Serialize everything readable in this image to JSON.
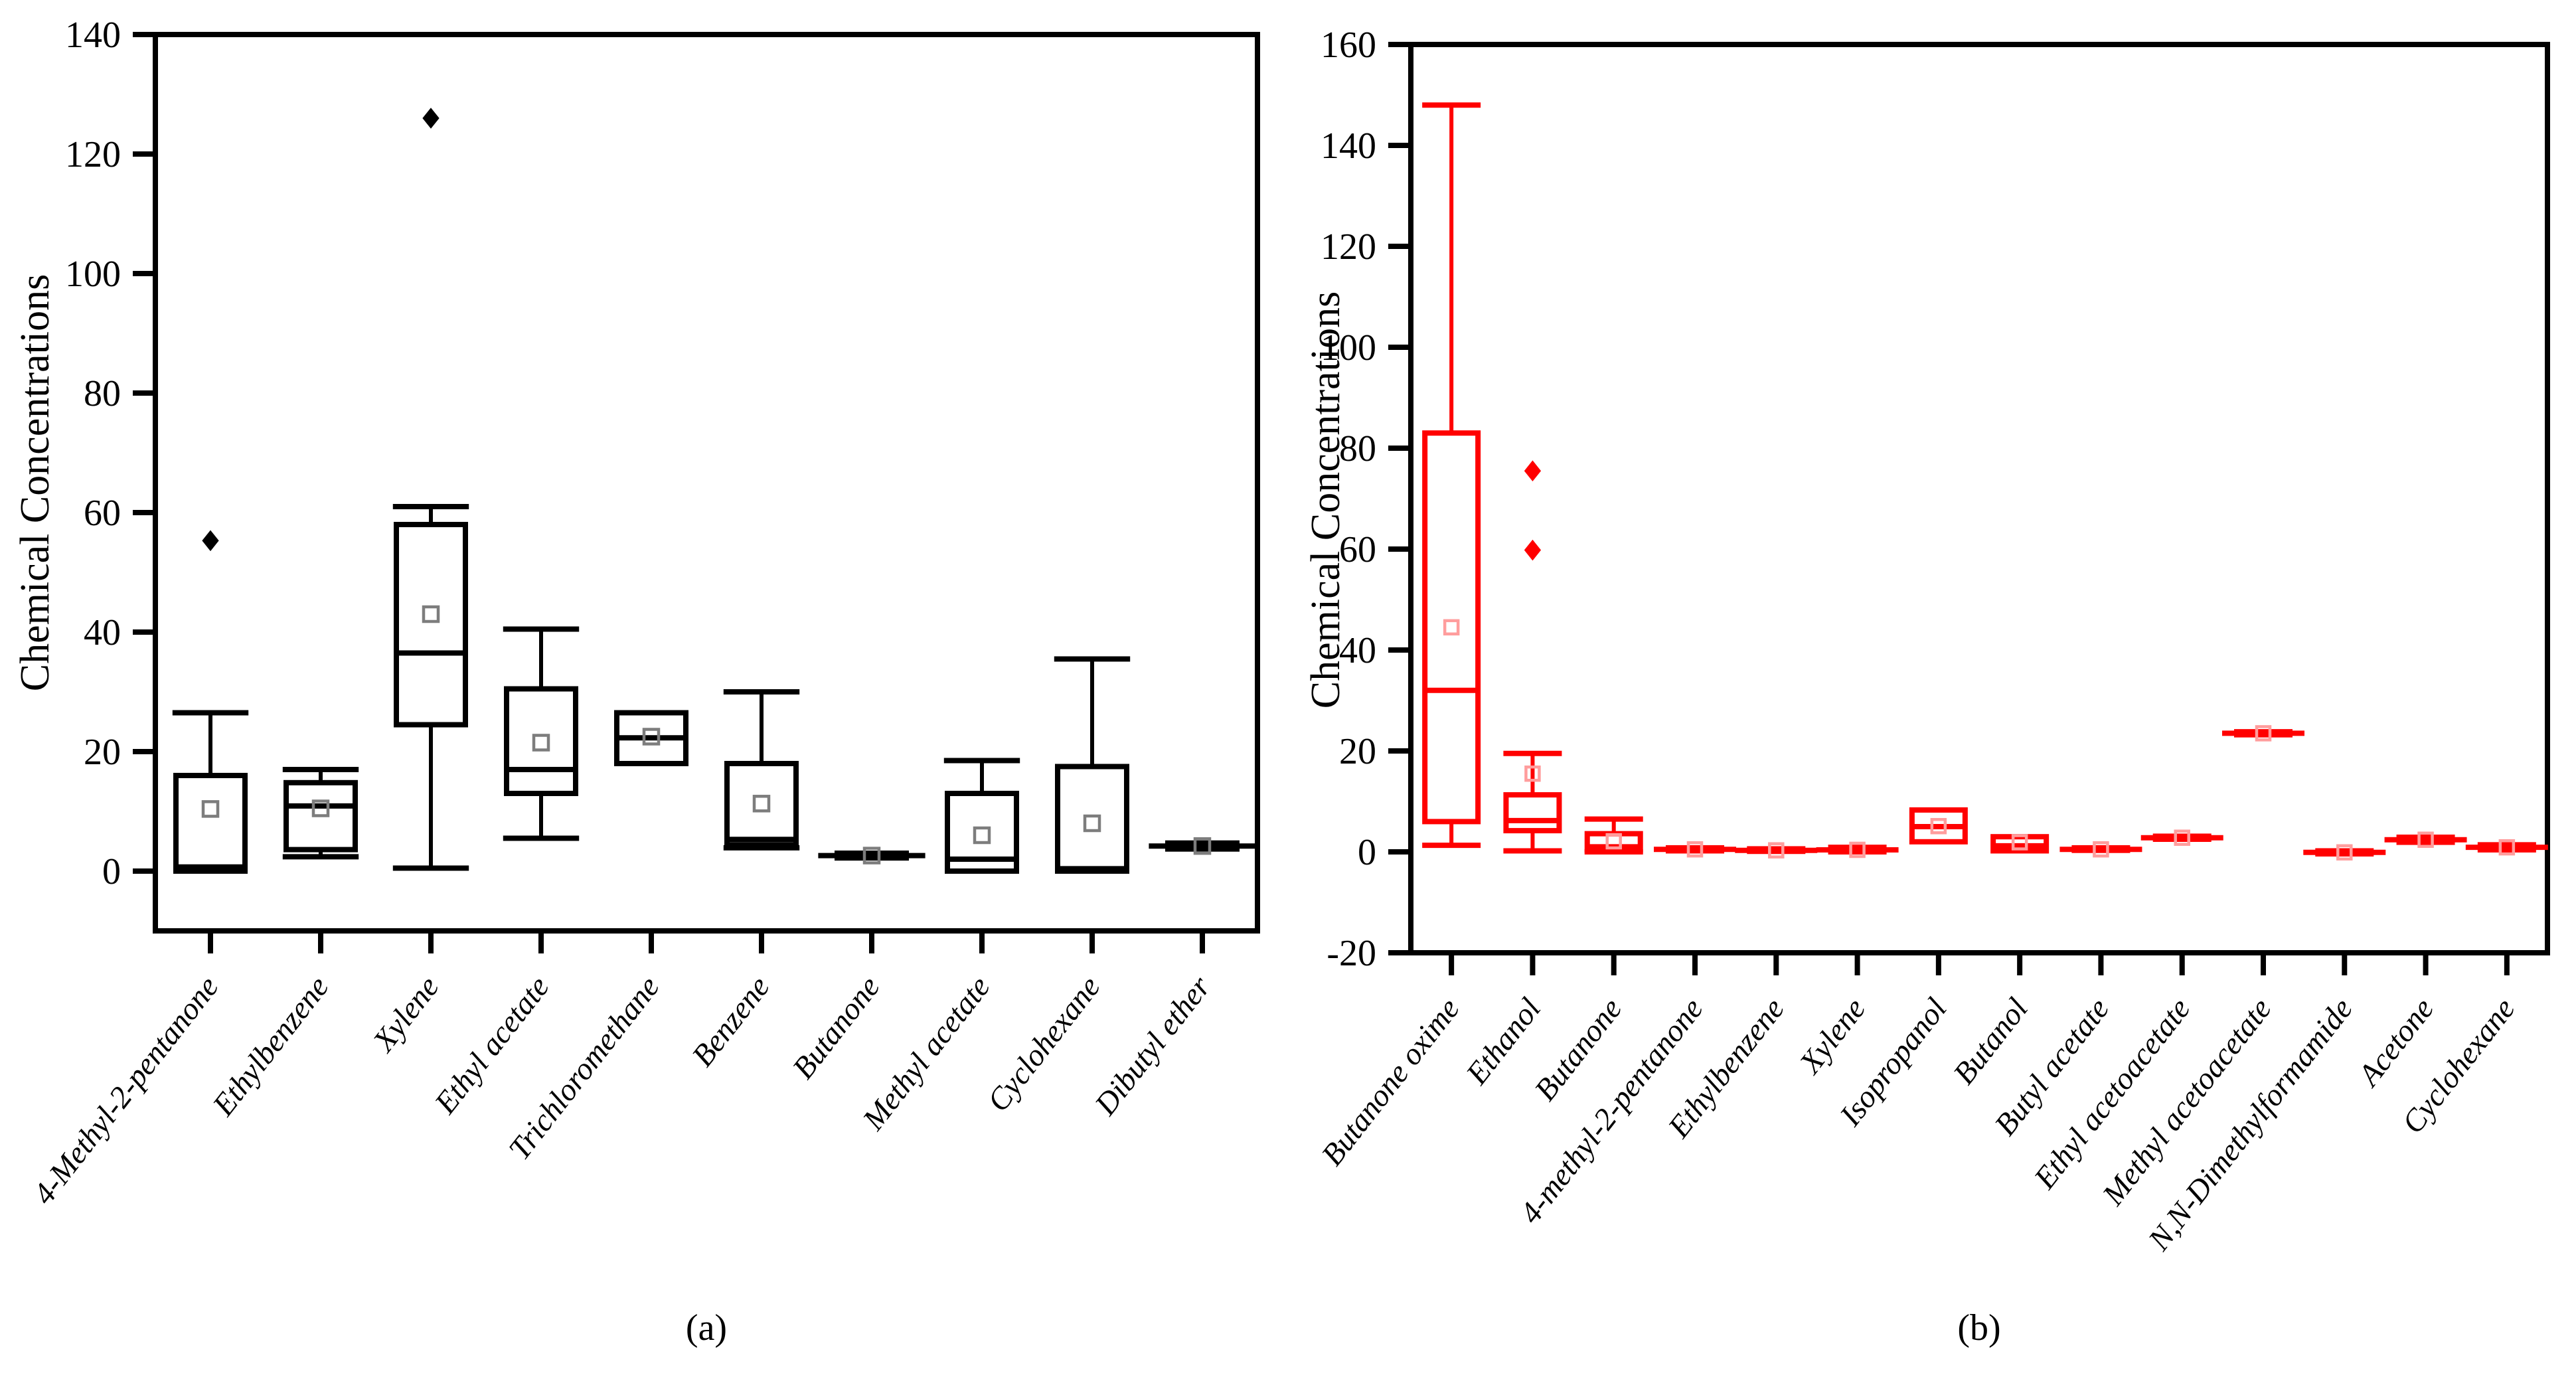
{
  "chart_data": [
    {
      "id": "a",
      "type": "box",
      "caption": "(a)",
      "ylabel": "Chemical Concentrations",
      "color": "#000000",
      "mean_marker_color": "#7d7d7d",
      "ylim": [
        -10,
        140
      ],
      "yticks": [
        0,
        20,
        40,
        60,
        80,
        100,
        120,
        140
      ],
      "grid": false,
      "legend": "none",
      "categories": [
        "4-Methyl-2-pentanone",
        "Ethylbenzene",
        "Xylene",
        "Ethyl acetate",
        "Trichloromethane",
        "Benzene",
        "Butanone",
        "Methyl acetate",
        "Cyclohexane",
        "Dibutyl ether"
      ],
      "boxes": [
        {
          "q1": 0,
          "median": 0.7,
          "q3": 16,
          "whisker_low": 0,
          "whisker_high": 26.5,
          "mean": 10.4,
          "outliers": [
            55.3
          ]
        },
        {
          "q1": 3.6,
          "median": 10.9,
          "q3": 14.8,
          "whisker_low": 2.4,
          "whisker_high": 17,
          "mean": 10.5,
          "outliers": []
        },
        {
          "q1": 24.5,
          "median": 36.5,
          "q3": 58,
          "whisker_low": 0.5,
          "whisker_high": 61,
          "mean": 43,
          "outliers": [
            126
          ]
        },
        {
          "q1": 13,
          "median": 17,
          "q3": 30.5,
          "whisker_low": 5.5,
          "whisker_high": 40.5,
          "mean": 21.5,
          "outliers": []
        },
        {
          "q1": 18,
          "median": 22.3,
          "q3": 26.5,
          "whisker_low": 18,
          "whisker_high": 26.5,
          "mean": 22.5,
          "outliers": []
        },
        {
          "q1": 4.4,
          "median": 5.3,
          "q3": 18,
          "whisker_low": 3.9,
          "whisker_high": 30,
          "mean": 11.3,
          "outliers": []
        },
        {
          "q1": 2.2,
          "median": 2.6,
          "q3": 3.0,
          "whisker_low": 2.2,
          "whisker_high": 3.0,
          "mean": 2.6,
          "outliers": []
        },
        {
          "q1": 0,
          "median": 2,
          "q3": 13,
          "whisker_low": 0,
          "whisker_high": 18.5,
          "mean": 6,
          "outliers": []
        },
        {
          "q1": 0,
          "median": 0.4,
          "q3": 17.5,
          "whisker_low": 0,
          "whisker_high": 35.5,
          "mean": 8,
          "outliers": []
        },
        {
          "q1": 3.7,
          "median": 4.2,
          "q3": 4.7,
          "whisker_low": 3.7,
          "whisker_high": 4.7,
          "mean": 4.2,
          "outliers": []
        }
      ]
    },
    {
      "id": "b",
      "type": "box",
      "caption": "(b)",
      "ylabel": "Chemical Concentrations",
      "color": "#ff0000",
      "mean_marker_color": "#ff9d9d",
      "ylim": [
        -20,
        160
      ],
      "yticks": [
        -20,
        0,
        20,
        40,
        60,
        80,
        100,
        120,
        140,
        160
      ],
      "grid": false,
      "legend": "none",
      "categories": [
        "Butanone oxime",
        "Ethanol",
        "Butanone",
        "4-methyl-2-pentanone",
        "Ethylbenzene",
        "Xylene",
        "Isopropanol",
        "Butanol",
        "Butyl acetate",
        "Ethyl acetoacetate",
        "Methyl acetoacetate",
        "N,N-Dimethylformamide",
        "Acetone",
        "Cyclohexane"
      ],
      "boxes": [
        {
          "q1": 6,
          "median": 32,
          "q3": 83,
          "whisker_low": 1.3,
          "whisker_high": 148,
          "mean": 44.5,
          "outliers": []
        },
        {
          "q1": 4.2,
          "median": 6.2,
          "q3": 11.3,
          "whisker_low": 0.2,
          "whisker_high": 19.5,
          "mean": 15.5,
          "outliers": [
            59.8,
            75.5
          ]
        },
        {
          "q1": 0.4,
          "median": 1.0,
          "q3": 3.6,
          "whisker_low": 0,
          "whisker_high": 6.5,
          "mean": 2.1,
          "outliers": []
        },
        {
          "q1": 0.2,
          "median": 0.5,
          "q3": 0.8,
          "whisker_low": 0.2,
          "whisker_high": 0.8,
          "mean": 0.5,
          "outliers": []
        },
        {
          "q1": 0.1,
          "median": 0.3,
          "q3": 0.6,
          "whisker_low": 0.1,
          "whisker_high": 0.6,
          "mean": 0.3,
          "outliers": []
        },
        {
          "q1": 0,
          "median": 0.4,
          "q3": 0.9,
          "whisker_low": 0,
          "whisker_high": 0.9,
          "mean": 0.4,
          "outliers": []
        },
        {
          "q1": 2,
          "median": 5,
          "q3": 8.3,
          "whisker_low": 2,
          "whisker_high": 8.3,
          "mean": 5.1,
          "outliers": []
        },
        {
          "q1": 0.2,
          "median": 1.2,
          "q3": 3.0,
          "whisker_low": 0.2,
          "whisker_high": 3.0,
          "mean": 1.9,
          "outliers": []
        },
        {
          "q1": 0.3,
          "median": 0.5,
          "q3": 0.8,
          "whisker_low": 0.3,
          "whisker_high": 0.8,
          "mean": 0.5,
          "outliers": []
        },
        {
          "q1": 2.5,
          "median": 2.8,
          "q3": 3.1,
          "whisker_low": 2.5,
          "whisker_high": 3.1,
          "mean": 2.8,
          "outliers": []
        },
        {
          "q1": 23.2,
          "median": 23.5,
          "q3": 23.8,
          "whisker_low": 23.2,
          "whisker_high": 23.8,
          "mean": 23.5,
          "outliers": []
        },
        {
          "q1": -0.4,
          "median": -0.1,
          "q3": 0.2,
          "whisker_low": -0.4,
          "whisker_high": 0.2,
          "mean": -0.1,
          "outliers": []
        },
        {
          "q1": 1.9,
          "median": 2.4,
          "q3": 2.9,
          "whisker_low": 1.9,
          "whisker_high": 2.9,
          "mean": 2.4,
          "outliers": []
        },
        {
          "q1": 0.4,
          "median": 0.9,
          "q3": 1.4,
          "whisker_low": 0.4,
          "whisker_high": 1.4,
          "mean": 0.9,
          "outliers": []
        }
      ]
    }
  ]
}
